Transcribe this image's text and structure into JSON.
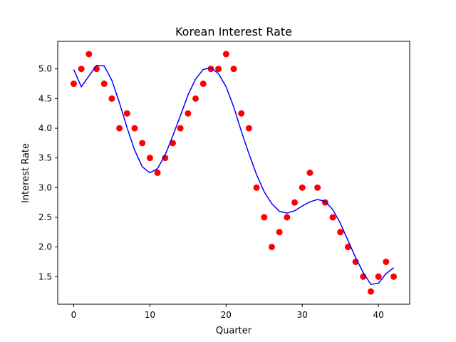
{
  "chart_data": {
    "type": "scatter",
    "title": "Korean Interest Rate",
    "xlabel": "Quarter",
    "ylabel": "Interest Rate",
    "xlim": [
      -2.1,
      44.1
    ],
    "ylim": [
      1.035,
      5.465
    ],
    "xticks": [
      0,
      10,
      20,
      30,
      40
    ],
    "xtick_labels": [
      "0",
      "10",
      "20",
      "30",
      "40"
    ],
    "yticks": [
      1.5,
      2.0,
      2.5,
      3.0,
      3.5,
      4.0,
      4.5,
      5.0
    ],
    "ytick_labels": [
      "1.5",
      "2.0",
      "2.5",
      "3.0",
      "3.5",
      "4.0",
      "4.5",
      "5.0"
    ],
    "grid": false,
    "series": [
      {
        "kind": "scatter",
        "color": "#ff0000",
        "x": [
          0,
          1,
          2,
          3,
          4,
          5,
          6,
          7,
          8,
          9,
          10,
          11,
          12,
          13,
          14,
          15,
          16,
          17,
          18,
          19,
          20,
          21,
          22,
          23,
          24,
          25,
          26,
          27,
          28,
          29,
          30,
          31,
          32,
          33,
          34,
          35,
          36,
          37,
          38,
          39,
          40,
          41,
          42
        ],
        "y": [
          4.75,
          5.0,
          5.25,
          5.0,
          4.75,
          4.5,
          4.0,
          4.25,
          4.0,
          3.75,
          3.5,
          3.25,
          3.5,
          3.75,
          4.0,
          4.25,
          4.5,
          4.75,
          5.0,
          5.0,
          5.25,
          5.0,
          4.25,
          4.0,
          3.0,
          2.5,
          2.0,
          2.25,
          2.5,
          2.75,
          3.0,
          3.25,
          3.0,
          2.75,
          2.5,
          2.25,
          2.0,
          1.75,
          1.5,
          1.25,
          1.5,
          1.75,
          1.5
        ]
      },
      {
        "kind": "line",
        "color": "#0000ff",
        "x": [
          0,
          1,
          2,
          3,
          4,
          5,
          6,
          7,
          8,
          9,
          10,
          11,
          12,
          13,
          14,
          15,
          16,
          17,
          18,
          19,
          20,
          21,
          22,
          23,
          24,
          25,
          26,
          27,
          28,
          29,
          30,
          31,
          32,
          33,
          34,
          35,
          36,
          37,
          38,
          39,
          40,
          41,
          42
        ],
        "y": [
          4.99,
          4.7,
          4.88,
          5.06,
          5.05,
          4.81,
          4.43,
          4.01,
          3.63,
          3.35,
          3.25,
          3.32,
          3.55,
          3.87,
          4.21,
          4.56,
          4.83,
          4.99,
          5.02,
          4.92,
          4.7,
          4.36,
          3.95,
          3.57,
          3.22,
          2.93,
          2.73,
          2.6,
          2.57,
          2.61,
          2.69,
          2.76,
          2.8,
          2.77,
          2.63,
          2.4,
          2.11,
          1.82,
          1.57,
          1.37,
          1.39,
          1.55,
          1.65
        ]
      }
    ]
  }
}
